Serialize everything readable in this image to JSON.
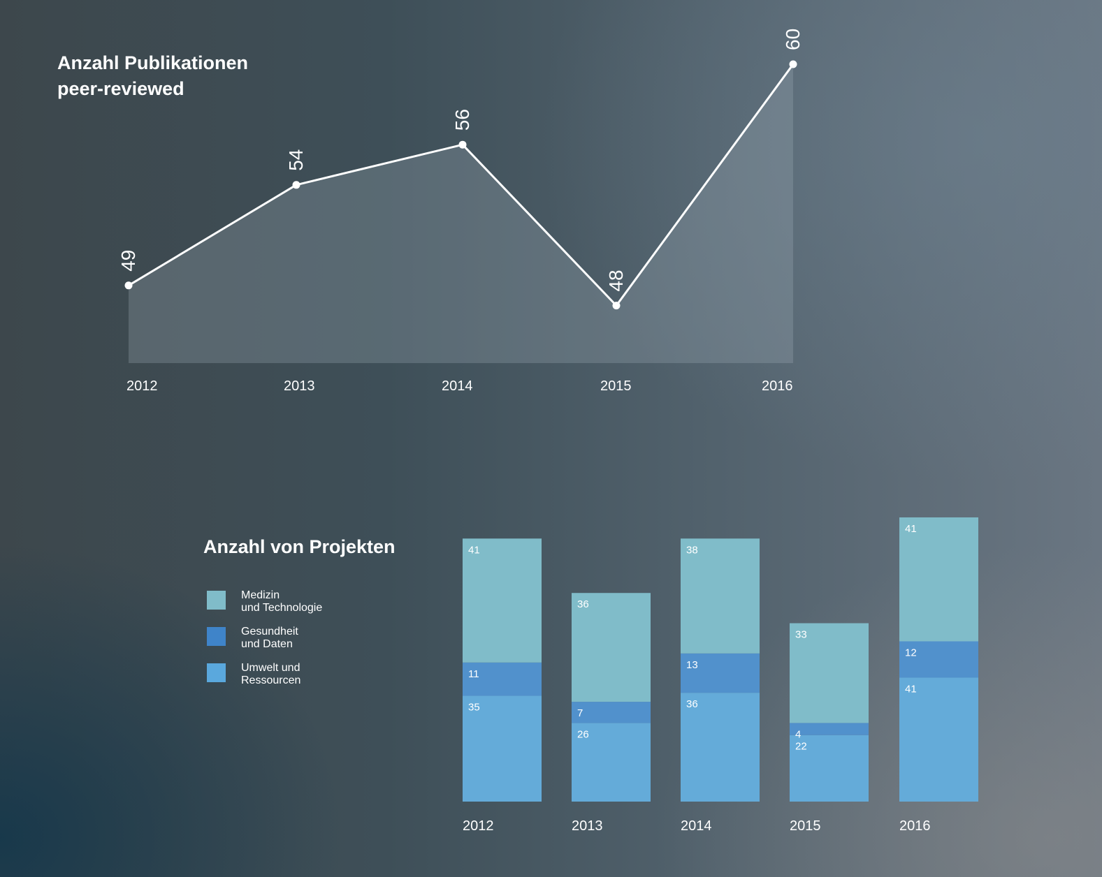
{
  "colors": {
    "line": "#ffffff",
    "area": "rgba(160,175,185,0.28)",
    "medizin": "#80bcc9",
    "gesundheit": "#5191cc",
    "umwelt": "#64abd9"
  },
  "chart_data": [
    {
      "type": "area",
      "title": [
        "Anzahl Publikationen",
        "peer-reviewed"
      ],
      "x": [
        "2012",
        "2013",
        "2014",
        "2015",
        "2016"
      ],
      "values": [
        49,
        54,
        56,
        48,
        60
      ],
      "data_labels": [
        "49",
        "54",
        "56",
        "48",
        "60"
      ],
      "grid": false
    },
    {
      "type": "bar",
      "stacked": true,
      "title": "Anzahl von Projekten",
      "categories": [
        "2012",
        "2013",
        "2014",
        "2015",
        "2016"
      ],
      "series": [
        {
          "name": [
            "Umwelt und",
            "Ressourcen"
          ],
          "color_key": "umwelt",
          "values": [
            35,
            26,
            36,
            22,
            41
          ]
        },
        {
          "name": [
            "Gesundheit",
            "und Daten"
          ],
          "color_key": "gesundheit",
          "values": [
            11,
            7,
            13,
            4,
            12
          ]
        },
        {
          "name": [
            "Medizin",
            "und Technologie"
          ],
          "color_key": "medizin",
          "values": [
            41,
            36,
            38,
            33,
            41
          ]
        }
      ],
      "legend_order": [
        "Medizin",
        "Gesundheit",
        "Umwelt"
      ],
      "legend_position": "left",
      "grid": false
    }
  ]
}
